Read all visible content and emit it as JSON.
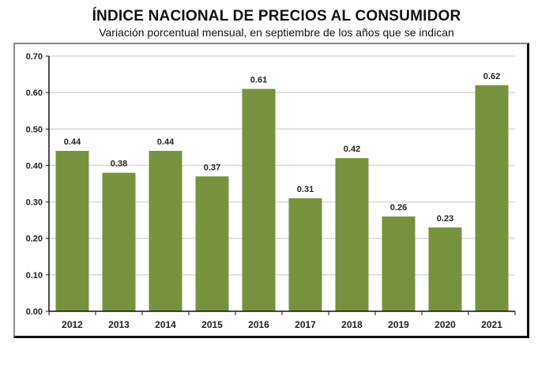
{
  "chart_data": {
    "type": "bar",
    "title": "ÍNDICE NACIONAL DE PRECIOS AL CONSUMIDOR",
    "subtitle": "Variación porcentual mensual, en septiembre de los años que se indican",
    "xlabel": "",
    "ylabel": "",
    "categories": [
      "2012",
      "2013",
      "2014",
      "2015",
      "2016",
      "2017",
      "2018",
      "2019",
      "2020",
      "2021"
    ],
    "values": [
      0.44,
      0.38,
      0.44,
      0.37,
      0.61,
      0.31,
      0.42,
      0.26,
      0.23,
      0.62
    ],
    "data_labels": [
      "0.44",
      "0.38",
      "0.44",
      "0.37",
      "0.61",
      "0.31",
      "0.42",
      "0.26",
      "0.23",
      "0.62"
    ],
    "ylim": [
      0,
      0.7
    ],
    "yticks": [
      0.0,
      0.1,
      0.2,
      0.3,
      0.4,
      0.5,
      0.6,
      0.7
    ],
    "ytick_labels": [
      "0.00",
      "0.10",
      "0.20",
      "0.30",
      "0.40",
      "0.50",
      "0.60",
      "0.70"
    ],
    "grid": true,
    "legend": "none",
    "bar_color": "#76923c",
    "grid_color": "#d9d9d9"
  }
}
